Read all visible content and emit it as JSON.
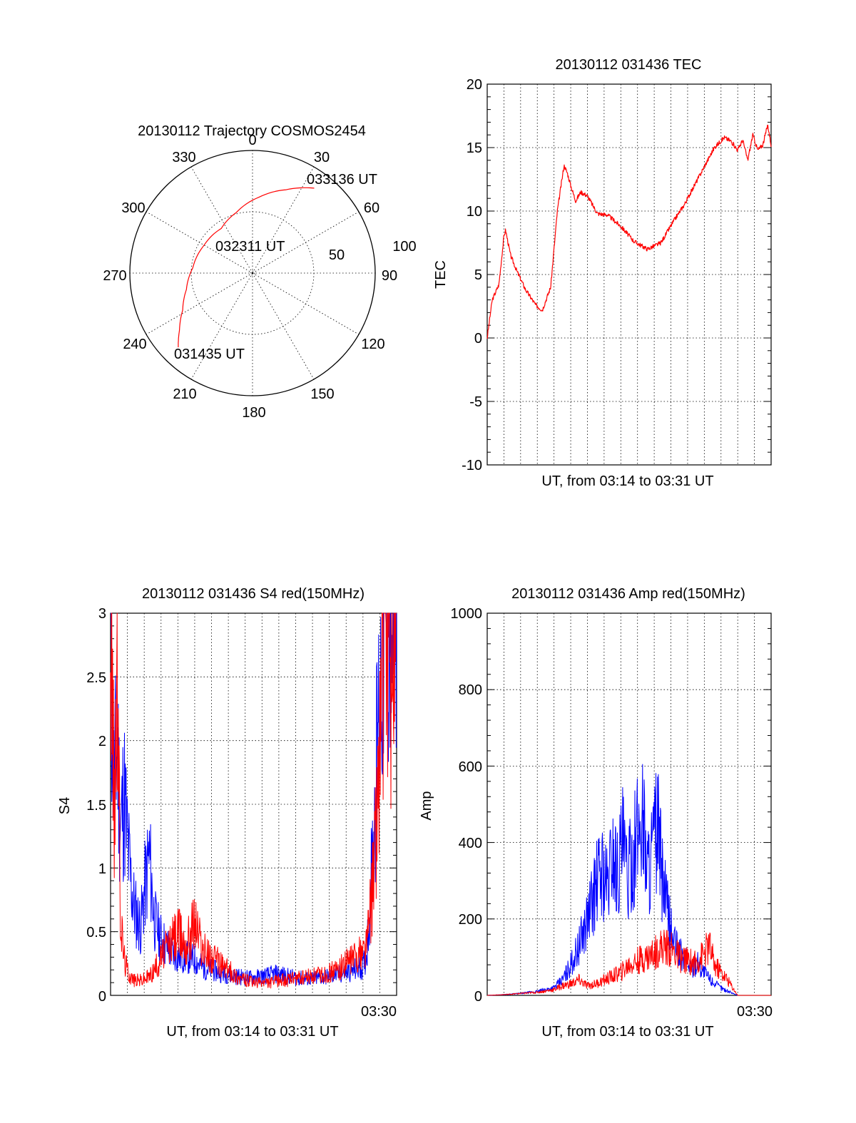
{
  "chart_data": [
    {
      "type": "polar",
      "title": "20130112 Trajectory COSMOS2454",
      "angle_labels": [
        "0",
        "30",
        "60",
        "90",
        "120",
        "150",
        "180",
        "210",
        "240",
        "270",
        "300",
        "330"
      ],
      "radius_labels": [
        "50",
        "100"
      ],
      "grid": true,
      "annotations": [
        "033136 UT",
        "032311 UT",
        "031435 UT"
      ],
      "series": [
        {
          "color": "#ff0000",
          "points": [
            {
              "azimuth": 225,
              "elevation": 13
            },
            {
              "azimuth": 232,
              "elevation": 22
            },
            {
              "azimuth": 242,
              "elevation": 32
            },
            {
              "azimuth": 256,
              "elevation": 40
            },
            {
              "azimuth": 275,
              "elevation": 46
            },
            {
              "azimuth": 300,
              "elevation": 49
            },
            {
              "azimuth": 325,
              "elevation": 50
            },
            {
              "azimuth": 345,
              "elevation": 44
            },
            {
              "azimuth": 5,
              "elevation": 34
            },
            {
              "azimuth": 22,
              "elevation": 24
            },
            {
              "azimuth": 36,
              "elevation": 13
            }
          ]
        }
      ]
    },
    {
      "type": "line",
      "title": "20130112 031436 TEC",
      "xlabel": "UT, from 03:14 to 03:31 UT",
      "ylabel": "TEC",
      "ylim": [
        -10,
        20
      ],
      "yticks": [
        "20",
        "15",
        "10",
        "5",
        "0",
        "-5",
        "-10"
      ],
      "grid": true,
      "series": [
        {
          "color": "#ff0000",
          "x": [
            0,
            0.3,
            0.7,
            1.0,
            1.1,
            1.4,
            1.8,
            2.3,
            2.9,
            3.3,
            3.8,
            4.2,
            4.6,
            4.8,
            5.0,
            5.3,
            5.6,
            6.0,
            6.6,
            7.2,
            8.0,
            8.8,
            9.6,
            10.4,
            10.8,
            11.3,
            11.8,
            12.4,
            13.0,
            13.6,
            14.2,
            14.6,
            15.0,
            15.3,
            15.6,
            15.9,
            16.2,
            16.5,
            16.8,
            17.0
          ],
          "values": [
            0,
            3.0,
            4.2,
            8.0,
            8.5,
            6.5,
            5.2,
            3.8,
            2.6,
            2.2,
            4.0,
            10.0,
            13.6,
            13.0,
            12.0,
            10.8,
            11.5,
            11.2,
            9.8,
            9.7,
            8.8,
            7.6,
            7.0,
            7.5,
            8.4,
            9.5,
            10.5,
            12.0,
            13.5,
            15.0,
            15.8,
            15.5,
            14.8,
            15.6,
            14.0,
            16.0,
            14.8,
            15.2,
            16.8,
            15.2
          ]
        }
      ]
    },
    {
      "type": "line",
      "title": "20130112 031436 S4 red(150MHz)",
      "xlabel": "UT, from 03:14 to 03:31 UT",
      "ylabel": "S4",
      "ylim": [
        0,
        3
      ],
      "yticks": [
        "3",
        "2.5",
        "2",
        "1.5",
        "1",
        "0.5",
        "0"
      ],
      "xtick_label": "03:30",
      "grid": true,
      "series": [
        {
          "color": "#0000ff",
          "x": [
            0,
            0.2,
            0.4,
            0.6,
            0.8,
            1.0,
            1.2,
            1.4,
            1.6,
            1.8,
            2.0,
            2.3,
            2.6,
            3.0,
            3.5,
            4.0,
            4.5,
            5.0,
            5.5,
            6.0,
            6.5,
            7.0,
            7.5,
            8.0,
            8.5,
            9.0,
            9.5,
            10.0,
            10.5,
            11.0,
            11.5,
            12.0,
            12.5,
            13.0,
            13.5,
            14.0,
            14.5,
            15.0,
            15.2,
            15.4,
            15.6,
            15.8,
            16.0,
            16.2,
            16.4,
            16.6,
            16.8,
            17.0
          ],
          "values": [
            2.8,
            1.6,
            2.0,
            1.3,
            1.6,
            1.2,
            0.9,
            0.7,
            0.6,
            0.55,
            0.8,
            1.1,
            0.6,
            0.45,
            0.35,
            0.3,
            0.3,
            0.28,
            0.22,
            0.2,
            0.18,
            0.16,
            0.15,
            0.14,
            0.14,
            0.15,
            0.16,
            0.17,
            0.15,
            0.14,
            0.13,
            0.13,
            0.14,
            0.15,
            0.16,
            0.18,
            0.2,
            0.22,
            0.3,
            0.7,
            1.2,
            1.8,
            2.4,
            2.8,
            3.0,
            2.9,
            3.0,
            2.9
          ]
        },
        {
          "color": "#ff0000",
          "x": [
            0,
            0.2,
            0.4,
            0.6,
            0.8,
            1.0,
            1.2,
            1.4,
            1.6,
            1.8,
            2.0,
            2.3,
            2.6,
            3.0,
            3.5,
            4.0,
            4.5,
            5.0,
            5.5,
            6.0,
            6.5,
            7.0,
            7.5,
            8.0,
            8.5,
            9.0,
            9.5,
            10.0,
            10.5,
            11.0,
            11.5,
            12.0,
            12.5,
            13.0,
            13.5,
            14.0,
            14.5,
            15.0,
            15.2,
            15.4,
            15.6,
            15.8,
            16.0,
            16.2,
            16.4,
            16.6,
            16.8,
            17.0
          ],
          "values": [
            3.0,
            1.5,
            2.5,
            0.6,
            0.3,
            0.2,
            0.15,
            0.12,
            0.12,
            0.12,
            0.13,
            0.15,
            0.2,
            0.3,
            0.4,
            0.5,
            0.4,
            0.6,
            0.35,
            0.3,
            0.25,
            0.2,
            0.15,
            0.12,
            0.1,
            0.1,
            0.1,
            0.12,
            0.12,
            0.13,
            0.14,
            0.15,
            0.16,
            0.18,
            0.2,
            0.25,
            0.3,
            0.35,
            0.4,
            0.6,
            0.9,
            1.4,
            2.0,
            2.6,
            3.0,
            2.5,
            2.8,
            3.0
          ]
        }
      ]
    },
    {
      "type": "line",
      "title": "20130112 031436 Amp red(150MHz)",
      "xlabel": "UT, from 03:14 to 03:31 UT",
      "ylabel": "Amp",
      "ylim": [
        0,
        1000
      ],
      "yticks": [
        "1000",
        "800",
        "600",
        "400",
        "200",
        "0"
      ],
      "xtick_label": "03:30",
      "grid": true,
      "series": [
        {
          "color": "#0000ff",
          "x": [
            0,
            1,
            2,
            3,
            4,
            4.5,
            5.0,
            5.5,
            6.0,
            6.3,
            6.6,
            6.9,
            7.2,
            7.5,
            7.8,
            8.1,
            8.4,
            8.7,
            9.0,
            9.3,
            9.6,
            9.9,
            10.2,
            10.5,
            10.8,
            11.1,
            11.4,
            11.7,
            12.0,
            12.3,
            12.6,
            13.0,
            13.4,
            13.8,
            14.2,
            15.0,
            17.0
          ],
          "values": [
            0,
            2,
            5,
            10,
            20,
            40,
            80,
            130,
            200,
            250,
            300,
            330,
            280,
            380,
            320,
            400,
            300,
            360,
            420,
            480,
            330,
            380,
            440,
            300,
            220,
            150,
            120,
            100,
            90,
            70,
            90,
            60,
            40,
            25,
            15,
            0,
            0
          ]
        },
        {
          "color": "#ff0000",
          "x": [
            0,
            1,
            2,
            3,
            4,
            4.5,
            5.0,
            5.5,
            6.0,
            6.5,
            7.0,
            7.5,
            8.0,
            8.5,
            9.0,
            9.5,
            10.0,
            10.5,
            11.0,
            11.5,
            12.0,
            12.5,
            13.0,
            13.3,
            13.6,
            14.0,
            14.4,
            15.0,
            17.0
          ],
          "values": [
            0,
            2,
            5,
            8,
            15,
            25,
            30,
            40,
            25,
            30,
            40,
            50,
            60,
            80,
            90,
            100,
            110,
            130,
            120,
            100,
            90,
            85,
            110,
            130,
            80,
            60,
            40,
            0,
            0
          ]
        }
      ]
    }
  ]
}
